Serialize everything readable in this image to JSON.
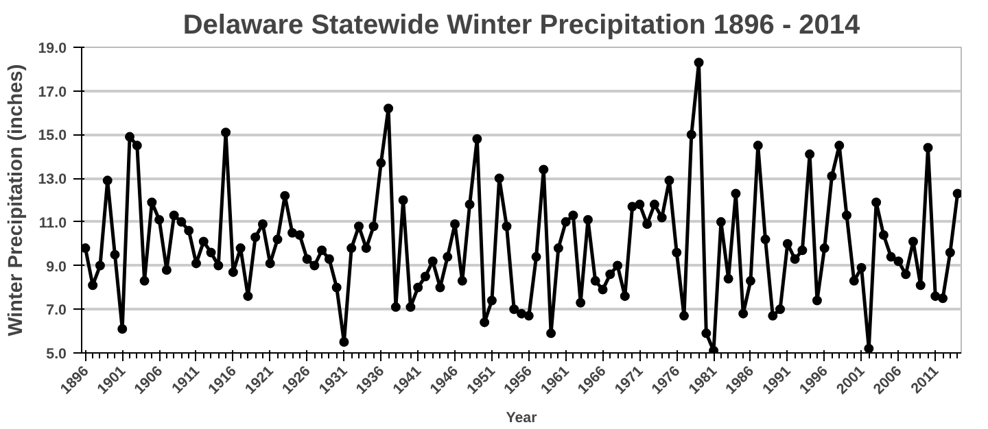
{
  "chart_data": {
    "type": "line",
    "title": "Delaware Statewide Winter Precipitation 1896 - 2014",
    "xlabel": "Year",
    "ylabel": "Winter Precipitation (inches)",
    "x": [
      1896,
      1897,
      1898,
      1899,
      1900,
      1901,
      1902,
      1903,
      1904,
      1905,
      1906,
      1907,
      1908,
      1909,
      1910,
      1911,
      1912,
      1913,
      1914,
      1915,
      1916,
      1917,
      1918,
      1919,
      1920,
      1921,
      1922,
      1923,
      1924,
      1925,
      1926,
      1927,
      1928,
      1929,
      1930,
      1931,
      1932,
      1933,
      1934,
      1935,
      1936,
      1937,
      1938,
      1939,
      1940,
      1941,
      1942,
      1943,
      1944,
      1945,
      1946,
      1947,
      1948,
      1949,
      1950,
      1951,
      1952,
      1953,
      1954,
      1955,
      1956,
      1957,
      1958,
      1959,
      1960,
      1961,
      1962,
      1963,
      1964,
      1965,
      1966,
      1967,
      1968,
      1969,
      1970,
      1971,
      1972,
      1973,
      1974,
      1975,
      1976,
      1977,
      1978,
      1979,
      1980,
      1981,
      1982,
      1983,
      1984,
      1985,
      1986,
      1987,
      1988,
      1989,
      1990,
      1991,
      1992,
      1993,
      1994,
      1995,
      1996,
      1997,
      1998,
      1999,
      2000,
      2001,
      2002,
      2003,
      2004,
      2005,
      2006,
      2007,
      2008,
      2009,
      2010,
      2011,
      2012,
      2013,
      2014
    ],
    "series": [
      {
        "color": "#000000",
        "values": [
          9.8,
          8.1,
          9.0,
          12.9,
          9.5,
          6.1,
          14.9,
          14.5,
          8.3,
          11.9,
          11.1,
          8.8,
          11.3,
          11.0,
          10.6,
          9.1,
          10.1,
          9.6,
          9.0,
          15.1,
          8.7,
          9.8,
          7.6,
          10.3,
          10.9,
          9.1,
          10.2,
          12.2,
          10.5,
          10.4,
          9.3,
          9.0,
          9.7,
          9.3,
          8.0,
          5.5,
          9.8,
          10.8,
          9.8,
          10.8,
          13.7,
          16.2,
          7.1,
          12.0,
          7.1,
          8.0,
          8.5,
          9.2,
          8.0,
          9.4,
          10.9,
          8.3,
          11.8,
          14.8,
          6.4,
          7.4,
          13.0,
          10.8,
          7.0,
          6.8,
          6.7,
          9.4,
          13.4,
          5.9,
          9.8,
          11.0,
          11.3,
          7.3,
          11.1,
          8.3,
          7.9,
          8.6,
          9.0,
          7.6,
          11.7,
          11.8,
          10.9,
          11.8,
          11.2,
          12.9,
          9.6,
          6.7,
          15.0,
          18.3,
          5.9,
          5.1,
          11.0,
          8.4,
          12.3,
          6.8,
          8.3,
          14.5,
          10.2,
          6.7,
          7.0,
          10.0,
          9.3,
          9.7,
          14.1,
          7.4,
          9.8,
          13.1,
          14.5,
          11.3,
          8.3,
          8.9,
          5.2,
          11.9,
          10.4,
          9.4,
          9.2,
          8.6,
          10.1,
          8.1,
          14.4,
          7.6,
          7.5,
          9.6,
          12.3
        ]
      }
    ],
    "xlim": [
      1895.5,
      2014.5
    ],
    "xticks": [
      1896,
      1901,
      1906,
      1911,
      1916,
      1921,
      1926,
      1931,
      1936,
      1941,
      1946,
      1951,
      1956,
      1961,
      1966,
      1971,
      1976,
      1981,
      1986,
      1991,
      1996,
      2001,
      2006,
      2011
    ],
    "ylim": [
      5.0,
      19.0
    ],
    "yticks": [
      {
        "value": 5,
        "label": "5.0"
      },
      {
        "value": 7,
        "label": "7.0"
      },
      {
        "value": 9,
        "label": "9.0"
      },
      {
        "value": 11,
        "label": "11.0"
      },
      {
        "value": 13,
        "label": "13.0"
      },
      {
        "value": 15,
        "label": "15.0"
      },
      {
        "value": 17,
        "label": "17.0"
      },
      {
        "value": 19,
        "label": "19.0"
      }
    ],
    "grid": "y",
    "marker": "circle",
    "line_style": "solid"
  }
}
